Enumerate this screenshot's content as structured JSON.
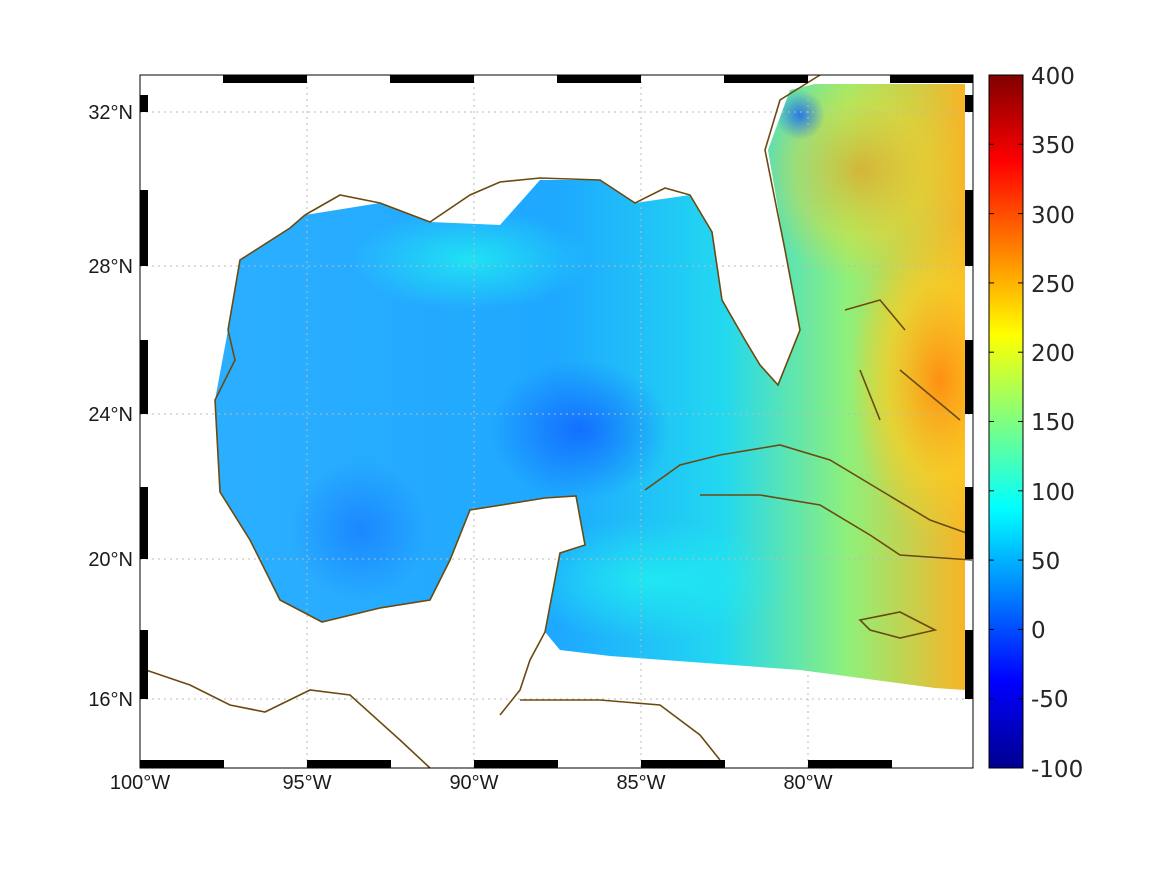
{
  "map": {
    "lat_labels": [
      "32°N",
      "28°N",
      "24°N",
      "20°N",
      "16°N"
    ],
    "lat_values": [
      32,
      28,
      24,
      20,
      16
    ],
    "lon_labels": [
      "100°W",
      "95°W",
      "90°W",
      "85°W",
      "80°W"
    ],
    "lon_values": [
      -100,
      -95,
      -90,
      -85,
      -80
    ],
    "extent": {
      "lon": [
        -100,
        -75
      ],
      "lat": [
        14.3,
        33
      ]
    },
    "coast_color": "#6b4a10",
    "grid": true
  },
  "colorbar": {
    "labels": [
      "400",
      "350",
      "300",
      "250",
      "200",
      "150",
      "100",
      "50",
      "0",
      "-50",
      "-100"
    ],
    "range": [
      -100,
      400
    ],
    "colormap": "jet"
  }
}
